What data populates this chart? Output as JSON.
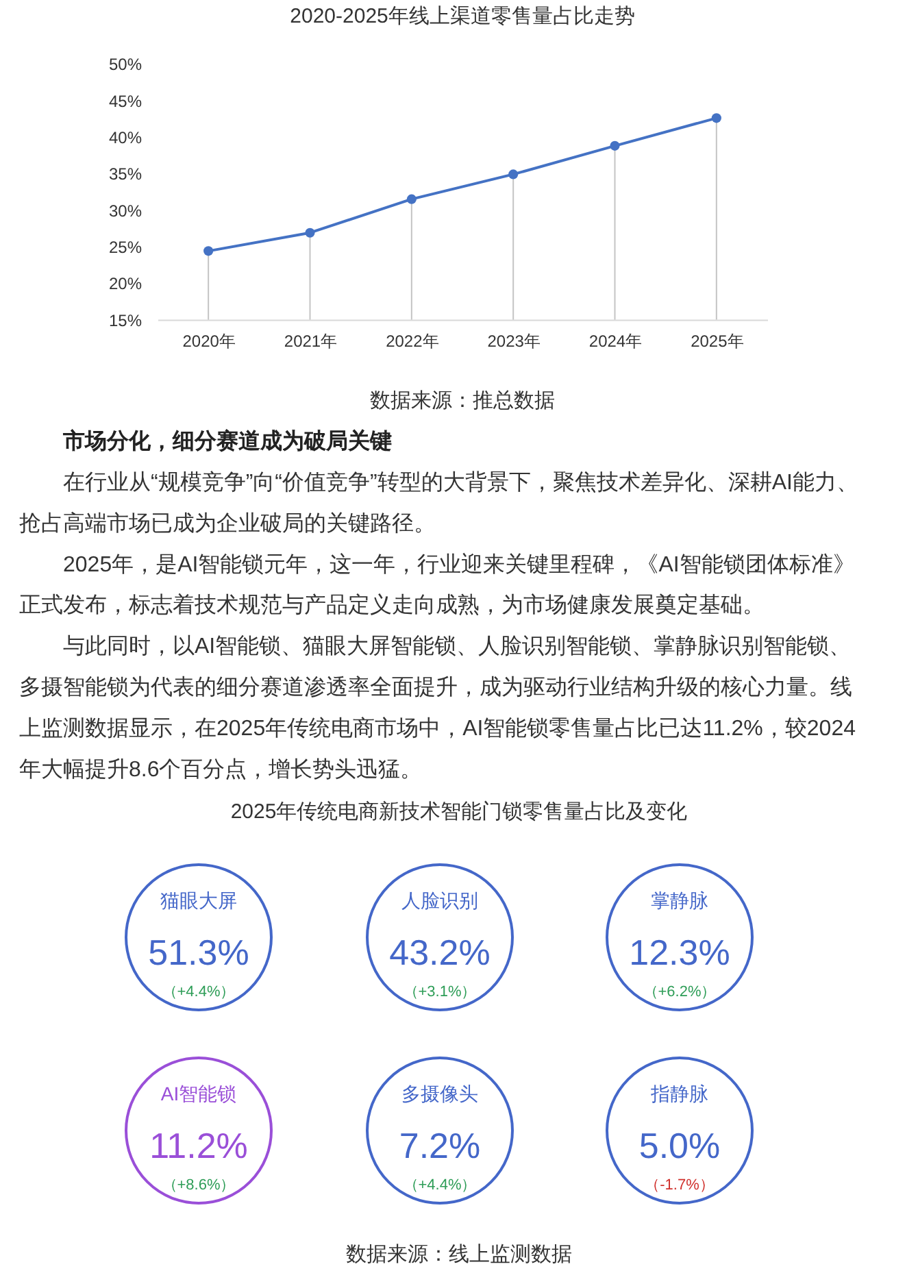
{
  "chart_data": [
    {
      "type": "line",
      "title": "2020-2025年线上渠道零售量占比走势",
      "categories": [
        "2020年",
        "2021年",
        "2022年",
        "2023年",
        "2024年",
        "2025年"
      ],
      "series": [
        {
          "type": "line",
          "color": "#4472c4",
          "values": [
            24.4,
            26.9,
            31.5,
            34.9,
            38.8,
            42.6
          ]
        },
        {
          "type": "lollipop",
          "color": "#4472c4",
          "marker": "circle",
          "values": [
            24.4,
            26.9,
            31.5,
            34.9,
            38.8,
            42.6
          ]
        }
      ],
      "ylim": [
        15,
        50
      ],
      "yticks": [
        {
          "value": 15,
          "label": "15%"
        },
        {
          "value": 20,
          "label": "20%"
        },
        {
          "value": 25,
          "label": "25%"
        },
        {
          "value": 30,
          "label": "30%"
        },
        {
          "value": 35,
          "label": "35%"
        },
        {
          "value": 40,
          "label": "40%"
        },
        {
          "value": 45,
          "label": "45%"
        },
        {
          "value": 50,
          "label": "50%"
        }
      ],
      "annotations": [
        "数据来源：推总数据"
      ]
    },
    {
      "type": "other",
      "title": "市场分化，细分赛道成为破局关键",
      "annotations": [
        "在行业从“规模竞争”向“价值竞争”转型的大背景下，聚焦技术差异化、深耕AI能力、抢占高端市场已成为企业破局的关键路径。",
        "2025年，是AI智能锁元年，这一年，行业迎来关键里程碑，《AI智能锁团体标准》正式发布，标志着技术规范与产品定义走向成熟，为市场健康发展奠定基础。",
        "与此同时，以AI智能锁、猫眼大屏智能锁、人脸识别智能锁、掌静脉识别智能锁、多摄智能锁为代表的细分赛道渗透率全面提升，成为驱动行业结构升级的核心力量。线上监测数据显示，在2025年传统电商市场中，AI智能锁零售量占比已达11.2%，较2024年大幅提升8.6个百分点，增长势头迅猛。"
      ]
    },
    {
      "type": "other",
      "title": "2025年传统电商新技术智能门锁零售量占比及变化",
      "categories": [
        "猫眼大屏",
        "人脸识别",
        "掌静脉",
        "AI智能锁",
        "多摄像头",
        "指静脉"
      ],
      "series": [
        {
          "values": [
            51.3,
            43.2,
            12.3,
            11.2,
            7.2,
            5.0
          ],
          "value_labels": [
            "51.3%",
            "43.2%",
            "12.3%",
            "11.2%",
            "7.2%",
            "5.0%"
          ],
          "colors": [
            "#4467c9",
            "#4467c9",
            "#4467c9",
            "#9a4fd8",
            "#4467c9",
            "#4467c9"
          ]
        },
        {
          "values": [
            4.4,
            3.1,
            6.2,
            8.6,
            4.4,
            -1.7
          ],
          "value_labels": [
            "（+4.4%）",
            "（+3.1%）",
            "（+6.2%）",
            "（+8.6%）",
            "（+4.4%）",
            "（-1.7%）"
          ],
          "colors": [
            "#2e9d57",
            "#2e9d57",
            "#2e9d57",
            "#2e9d57",
            "#2e9d57",
            "#d0312d"
          ]
        }
      ],
      "annotations": [
        "数据来源：线上监测数据"
      ]
    }
  ]
}
